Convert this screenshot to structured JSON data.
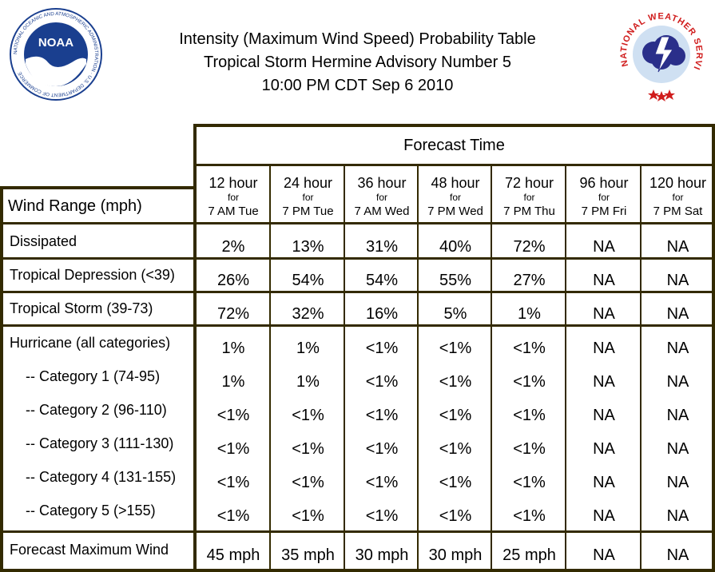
{
  "title": {
    "line1": "Intensity (Maximum Wind Speed) Probability Table",
    "line2": "Tropical Storm Hermine Advisory Number 5",
    "line3": "10:00 PM CDT Sep 6 2010"
  },
  "logos": {
    "noaa_text": "NOAA",
    "noaa_ring": "NATIONAL OCEANIC AND ATMOSPHERIC ADMINISTRATION · U.S. DEPARTMENT OF COMMERCE",
    "nws_ring": "NATIONAL WEATHER SERVICE"
  },
  "table": {
    "forecast_time_label": "Forecast Time",
    "wind_range_label": "Wind Range (mph)",
    "for_label": "for",
    "columns": [
      {
        "hours": "12 hour",
        "when": "7 AM Tue"
      },
      {
        "hours": "24 hour",
        "when": "7 PM Tue"
      },
      {
        "hours": "36 hour",
        "when": "7 AM Wed"
      },
      {
        "hours": "48 hour",
        "when": "7 PM Wed"
      },
      {
        "hours": "72 hour",
        "when": "7 PM Thu"
      },
      {
        "hours": "96 hour",
        "when": "7 PM Fri"
      },
      {
        "hours": "120 hour",
        "when": "7 PM Sat"
      }
    ],
    "rows": [
      {
        "label": "Dissipated",
        "values": [
          "2%",
          "13%",
          "31%",
          "40%",
          "72%",
          "NA",
          "NA"
        ]
      },
      {
        "label": "Tropical Depression (<39)",
        "values": [
          "26%",
          "54%",
          "54%",
          "55%",
          "27%",
          "NA",
          "NA"
        ]
      },
      {
        "label": "Tropical Storm (39-73)",
        "values": [
          "72%",
          "32%",
          "16%",
          "5%",
          "1%",
          "NA",
          "NA"
        ]
      },
      {
        "label": "Hurricane (all categories)",
        "values": [
          "1%",
          "1%",
          "<1%",
          "<1%",
          "<1%",
          "NA",
          "NA"
        ]
      },
      {
        "label": "-- Category 1 (74-95)",
        "values": [
          "1%",
          "1%",
          "<1%",
          "<1%",
          "<1%",
          "NA",
          "NA"
        ]
      },
      {
        "label": "-- Category 2 (96-110)",
        "values": [
          "<1%",
          "<1%",
          "<1%",
          "<1%",
          "<1%",
          "NA",
          "NA"
        ]
      },
      {
        "label": "-- Category 3 (111-130)",
        "values": [
          "<1%",
          "<1%",
          "<1%",
          "<1%",
          "<1%",
          "NA",
          "NA"
        ]
      },
      {
        "label": "-- Category 4 (131-155)",
        "values": [
          "<1%",
          "<1%",
          "<1%",
          "<1%",
          "<1%",
          "NA",
          "NA"
        ]
      },
      {
        "label": "-- Category 5 (>155)",
        "values": [
          "<1%",
          "<1%",
          "<1%",
          "<1%",
          "<1%",
          "NA",
          "NA"
        ]
      },
      {
        "label": "Forecast Maximum Wind",
        "values": [
          "45 mph",
          "35 mph",
          "30 mph",
          "30 mph",
          "25 mph",
          "NA",
          "NA"
        ]
      }
    ]
  },
  "colors": {
    "border": "#332a00",
    "noaa_blue": "#1a3f8f",
    "nws_red": "#d01c1c"
  }
}
